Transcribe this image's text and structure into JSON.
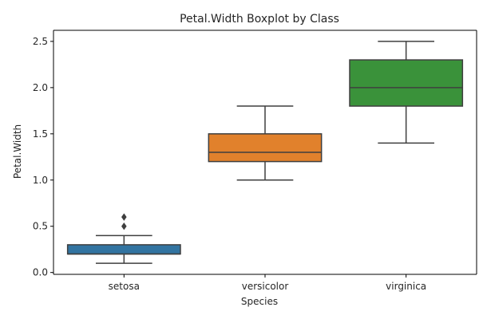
{
  "chart_data": {
    "type": "boxplot",
    "title": "Petal.Width Boxplot by Class",
    "xlabel": "Species",
    "ylabel": "Petal.Width",
    "categories": [
      "setosa",
      "versicolor",
      "virginica"
    ],
    "ylim": [
      -0.02,
      2.62
    ],
    "yticks": [
      0.0,
      0.5,
      1.0,
      1.5,
      2.0,
      2.5
    ],
    "ytick_labels": [
      "0.0",
      "0.5",
      "1.0",
      "1.5",
      "2.0",
      "2.5"
    ],
    "grid": false,
    "series": [
      {
        "category": "setosa",
        "whisker_low": 0.1,
        "q1": 0.2,
        "median": 0.2,
        "q3": 0.3,
        "whisker_high": 0.4,
        "outliers": [
          0.5,
          0.6
        ],
        "color": "#3274a1"
      },
      {
        "category": "versicolor",
        "whisker_low": 1.0,
        "q1": 1.2,
        "median": 1.3,
        "q3": 1.5,
        "whisker_high": 1.8,
        "outliers": [],
        "color": "#e1812c"
      },
      {
        "category": "virginica",
        "whisker_low": 1.4,
        "q1": 1.8,
        "median": 2.0,
        "q3": 2.3,
        "whisker_high": 2.5,
        "outliers": [],
        "color": "#3a923a"
      }
    ],
    "line_color": "#3f3f3f"
  }
}
